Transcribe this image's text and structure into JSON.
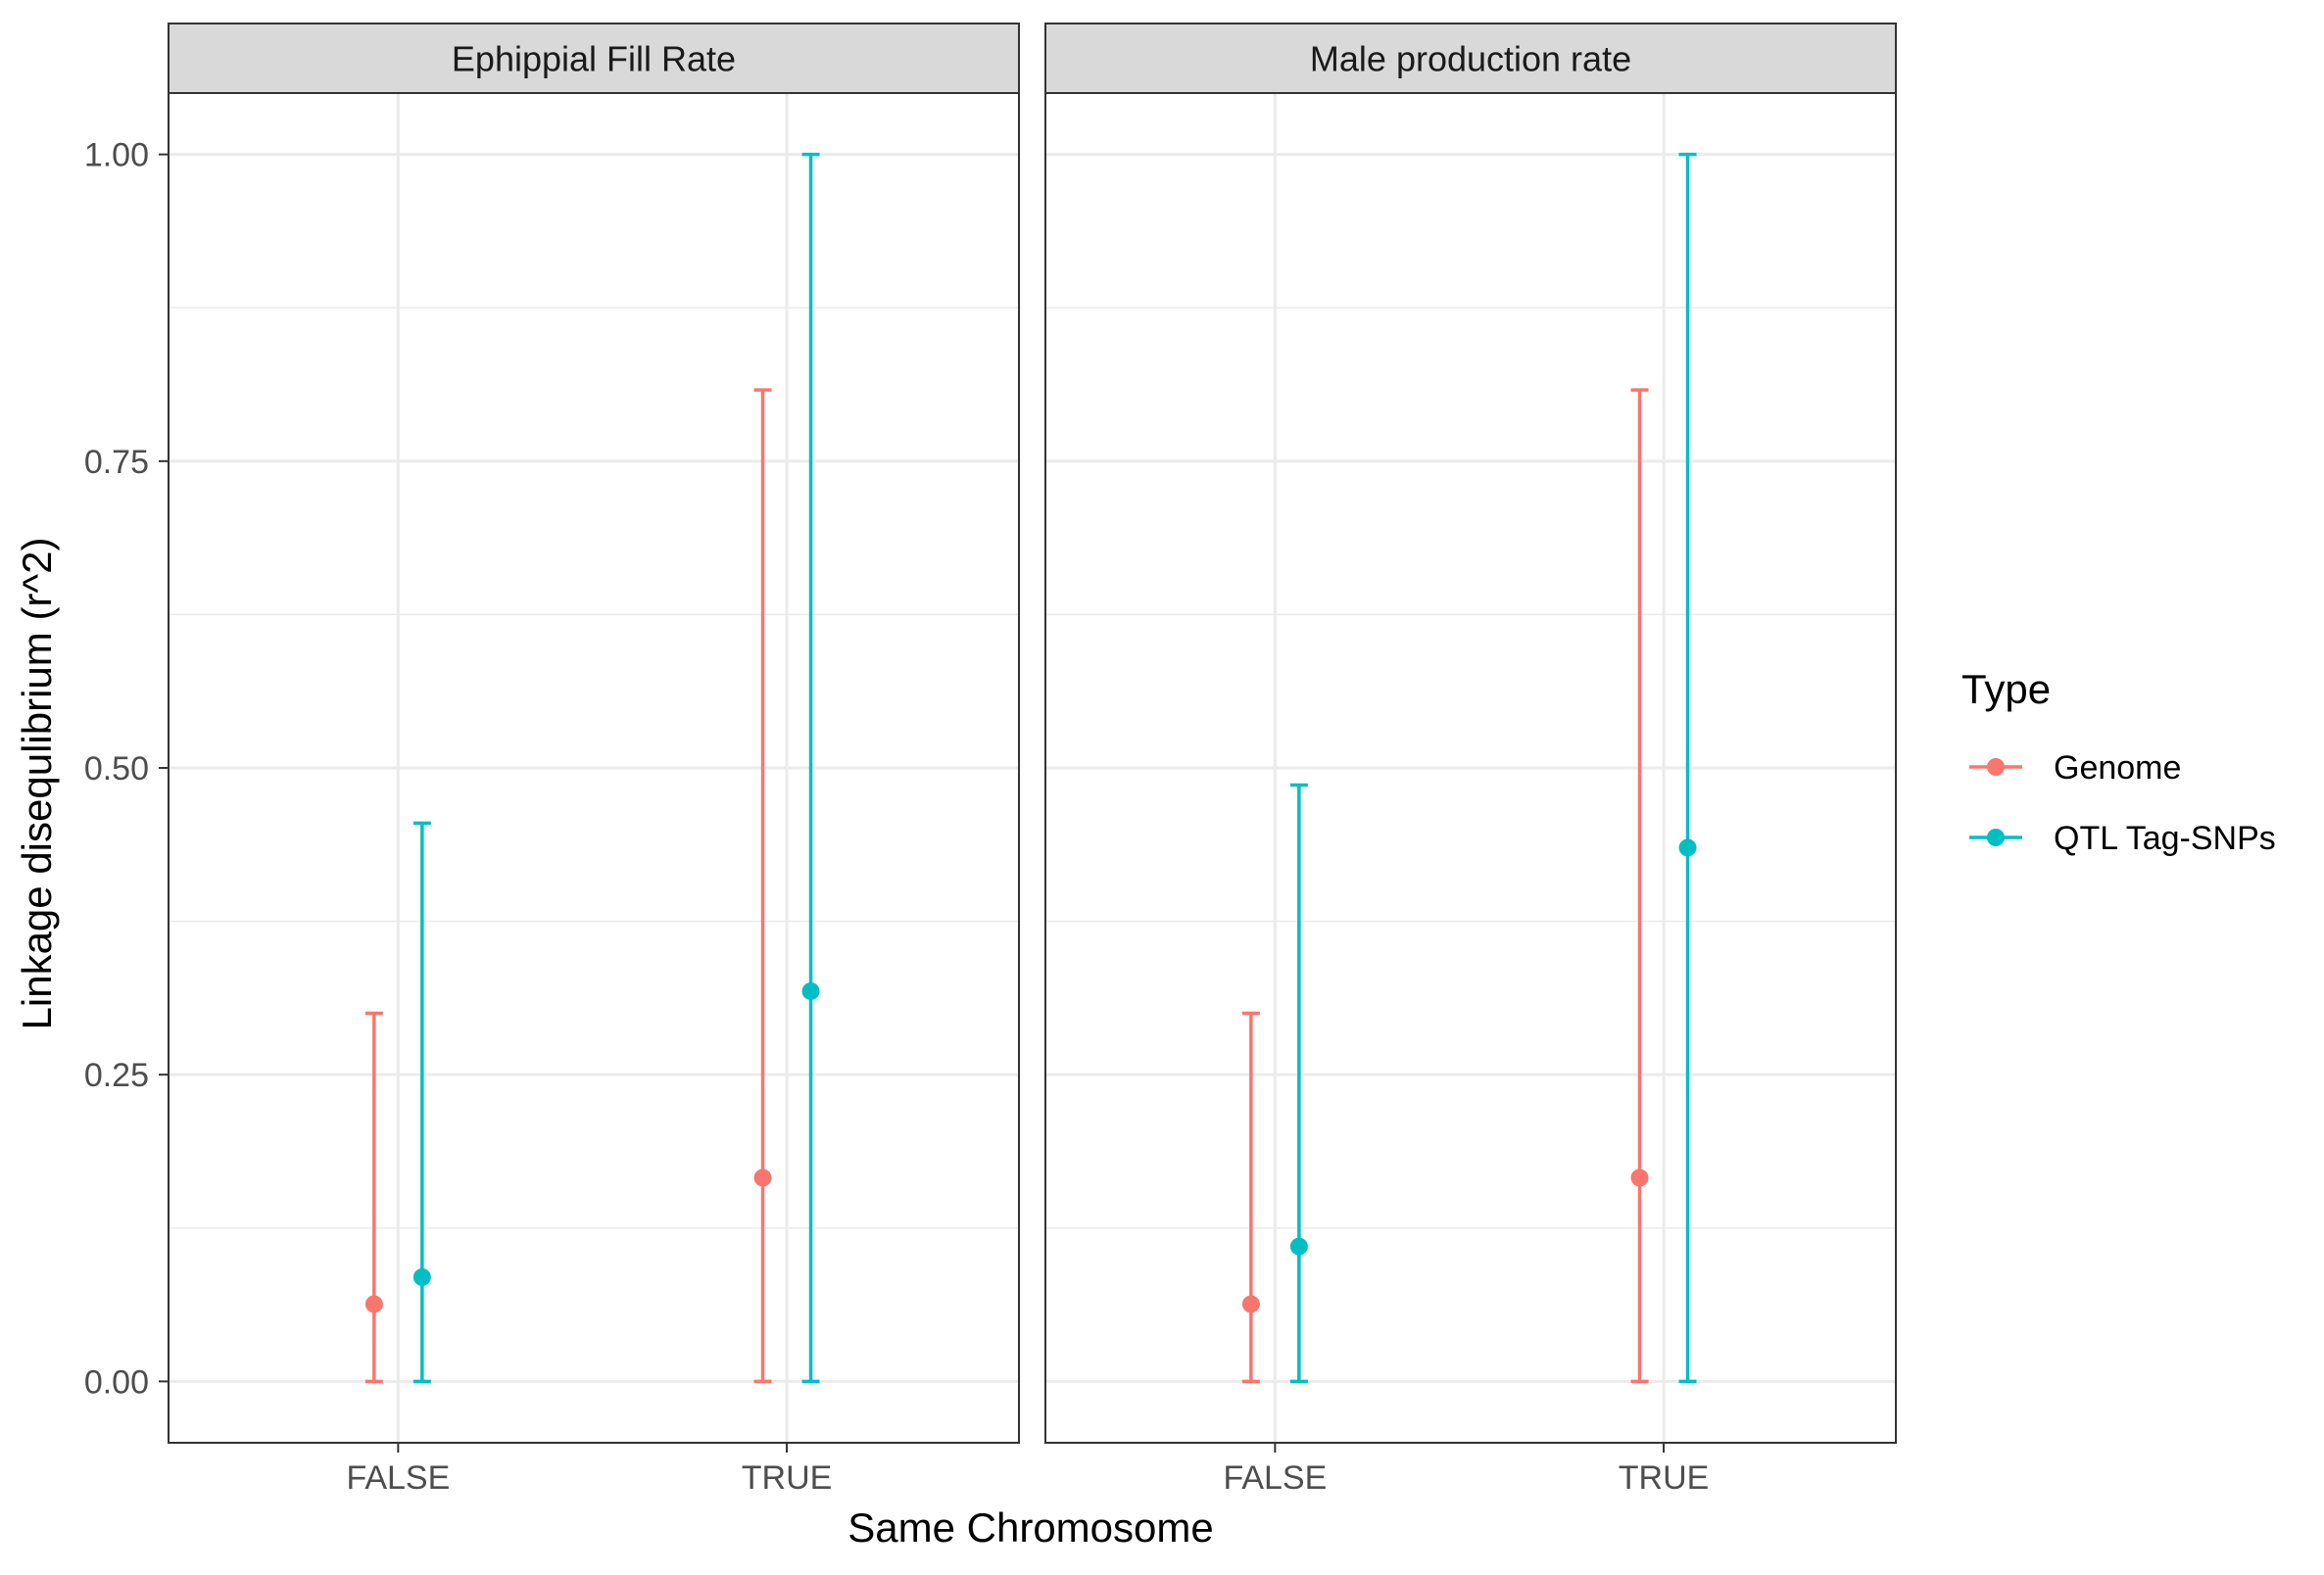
{
  "chart_data": {
    "type": "errorbar",
    "xlabel": "Same Chromosome",
    "ylabel": "Linkage disequlibrium (r^2)",
    "ylim": [
      -0.05,
      1.05
    ],
    "yticks": [
      "0.00",
      "0.25",
      "0.50",
      "0.75",
      "1.00"
    ],
    "ytick_values": [
      0,
      0.25,
      0.5,
      0.75,
      1.0
    ],
    "categories": [
      "FALSE",
      "TRUE"
    ],
    "grid": true,
    "legend": {
      "title": "Type",
      "position": "right",
      "entries": [
        "Genome",
        "QTL Tag-SNPs"
      ]
    },
    "colors": {
      "Genome": "#F8766D",
      "QTL Tag-SNPs": "#00BFC4"
    },
    "facets": [
      {
        "title": "Ephippial Fill Rate",
        "series": [
          {
            "name": "Genome",
            "points": [
              {
                "x": "FALSE",
                "y": 0.063,
                "ymin": 0,
                "ymax": 0.3
              },
              {
                "x": "TRUE",
                "y": 0.166,
                "ymin": 0,
                "ymax": 0.808
              }
            ]
          },
          {
            "name": "QTL Tag-SNPs",
            "points": [
              {
                "x": "FALSE",
                "y": 0.085,
                "ymin": 0,
                "ymax": 0.455
              },
              {
                "x": "TRUE",
                "y": 0.318,
                "ymin": 0,
                "ymax": 1.0
              }
            ]
          }
        ]
      },
      {
        "title": "Male production rate",
        "series": [
          {
            "name": "Genome",
            "points": [
              {
                "x": "FALSE",
                "y": 0.063,
                "ymin": 0,
                "ymax": 0.3
              },
              {
                "x": "TRUE",
                "y": 0.166,
                "ymin": 0,
                "ymax": 0.808
              }
            ]
          },
          {
            "name": "QTL Tag-SNPs",
            "points": [
              {
                "x": "FALSE",
                "y": 0.11,
                "ymin": 0,
                "ymax": 0.486
              },
              {
                "x": "TRUE",
                "y": 0.435,
                "ymin": 0,
                "ymax": 1.0
              }
            ]
          }
        ]
      }
    ]
  }
}
